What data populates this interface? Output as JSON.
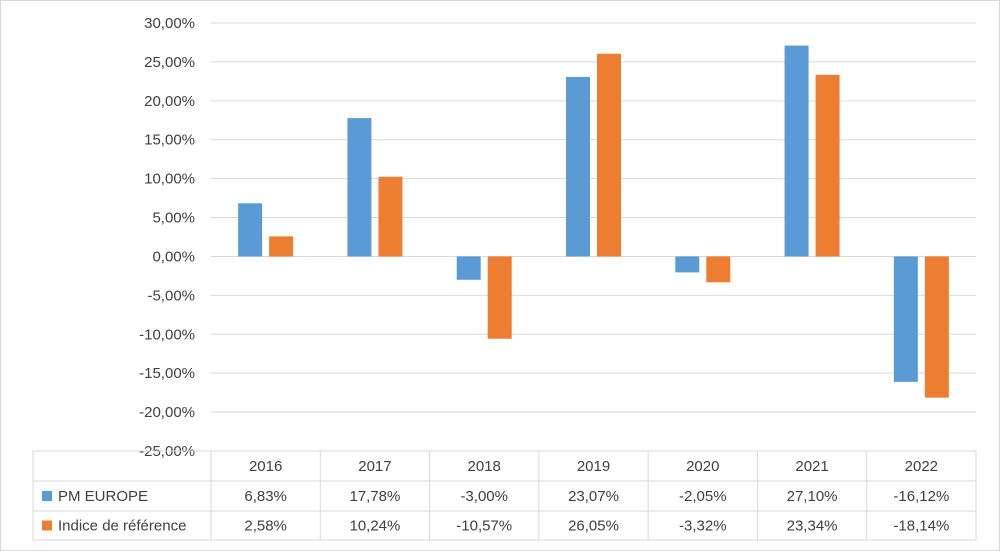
{
  "chart_data": {
    "type": "bar",
    "categories": [
      "2016",
      "2017",
      "2018",
      "2019",
      "2020",
      "2021",
      "2022"
    ],
    "series": [
      {
        "name": "PM EUROPE",
        "color": "#5b9bd5",
        "values": [
          6.83,
          17.78,
          -3.0,
          23.07,
          -2.05,
          27.1,
          -16.12
        ],
        "labels": [
          "6,83%",
          "17,78%",
          "-3,00%",
          "23,07%",
          "-2,05%",
          "27,10%",
          "-16,12%"
        ]
      },
      {
        "name": "Indice de référence",
        "color": "#ed7d31",
        "values": [
          2.58,
          10.24,
          -10.57,
          26.05,
          -3.32,
          23.34,
          -18.14
        ],
        "labels": [
          "2,58%",
          "10,24%",
          "-10,57%",
          "26,05%",
          "-3,32%",
          "23,34%",
          "-18,14%"
        ]
      }
    ],
    "ylim": [
      -25,
      30
    ],
    "ytick_values": [
      30,
      25,
      20,
      15,
      10,
      5,
      0,
      -5,
      -10,
      -15,
      -20,
      -25
    ],
    "ytick_labels": [
      "30,00%",
      "25,00%",
      "20,00%",
      "15,00%",
      "10,00%",
      "5,00%",
      "0,00%",
      "-5,00%",
      "-10,00%",
      "-15,00%",
      "-20,00%",
      "-25,00%"
    ],
    "grid": true,
    "legend": "data table"
  }
}
